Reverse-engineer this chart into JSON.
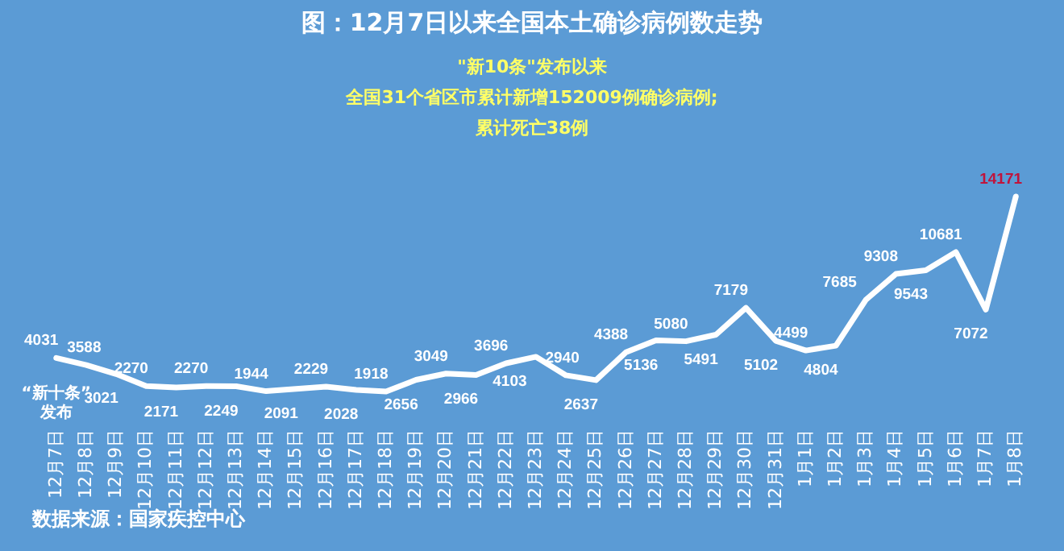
{
  "chart_data": {
    "type": "line",
    "title": "图：12月7日以来全国本土确诊病例数走势",
    "categories": [
      "12月7日",
      "12月8日",
      "12月9日",
      "12月10日",
      "12月11日",
      "12月12日",
      "12月13日",
      "12月14日",
      "12月15日",
      "12月16日",
      "12月17日",
      "12月18日",
      "12月19日",
      "12月20日",
      "12月21日",
      "12月22日",
      "12月23日",
      "12月24日",
      "12月25日",
      "12月26日",
      "12月27日",
      "12月28日",
      "12月29日",
      "12月30日",
      "12月31日",
      "1月1日",
      "1月2日",
      "1月3日",
      "1月4日",
      "1月5日",
      "1月6日",
      "1月7日",
      "1月8日"
    ],
    "series": [
      {
        "color": "#ffffff",
        "values": [
          4031,
          3588,
          3021,
          2270,
          2171,
          2270,
          2249,
          1944,
          2091,
          2229,
          2028,
          1918,
          2656,
          3049,
          2966,
          3696,
          4103,
          2940,
          2637,
          4388,
          5136,
          5080,
          5491,
          7179,
          5102,
          4499,
          4804,
          7685,
          9308,
          9543,
          10681,
          7072,
          14171
        ]
      }
    ],
    "data_labels": true,
    "grid": false,
    "marker": "none",
    "line_style": "solid",
    "tick_labels": "x",
    "annotations": [
      {
        "text": "“新十条”发布",
        "x": "12月7日",
        "y": 4031
      },
      "\"新10条\"发布以来",
      "全国31个省区市累计新增152009例确诊病例;",
      "累计死亡38例",
      "数据来源：国家疾控中心"
    ]
  }
}
